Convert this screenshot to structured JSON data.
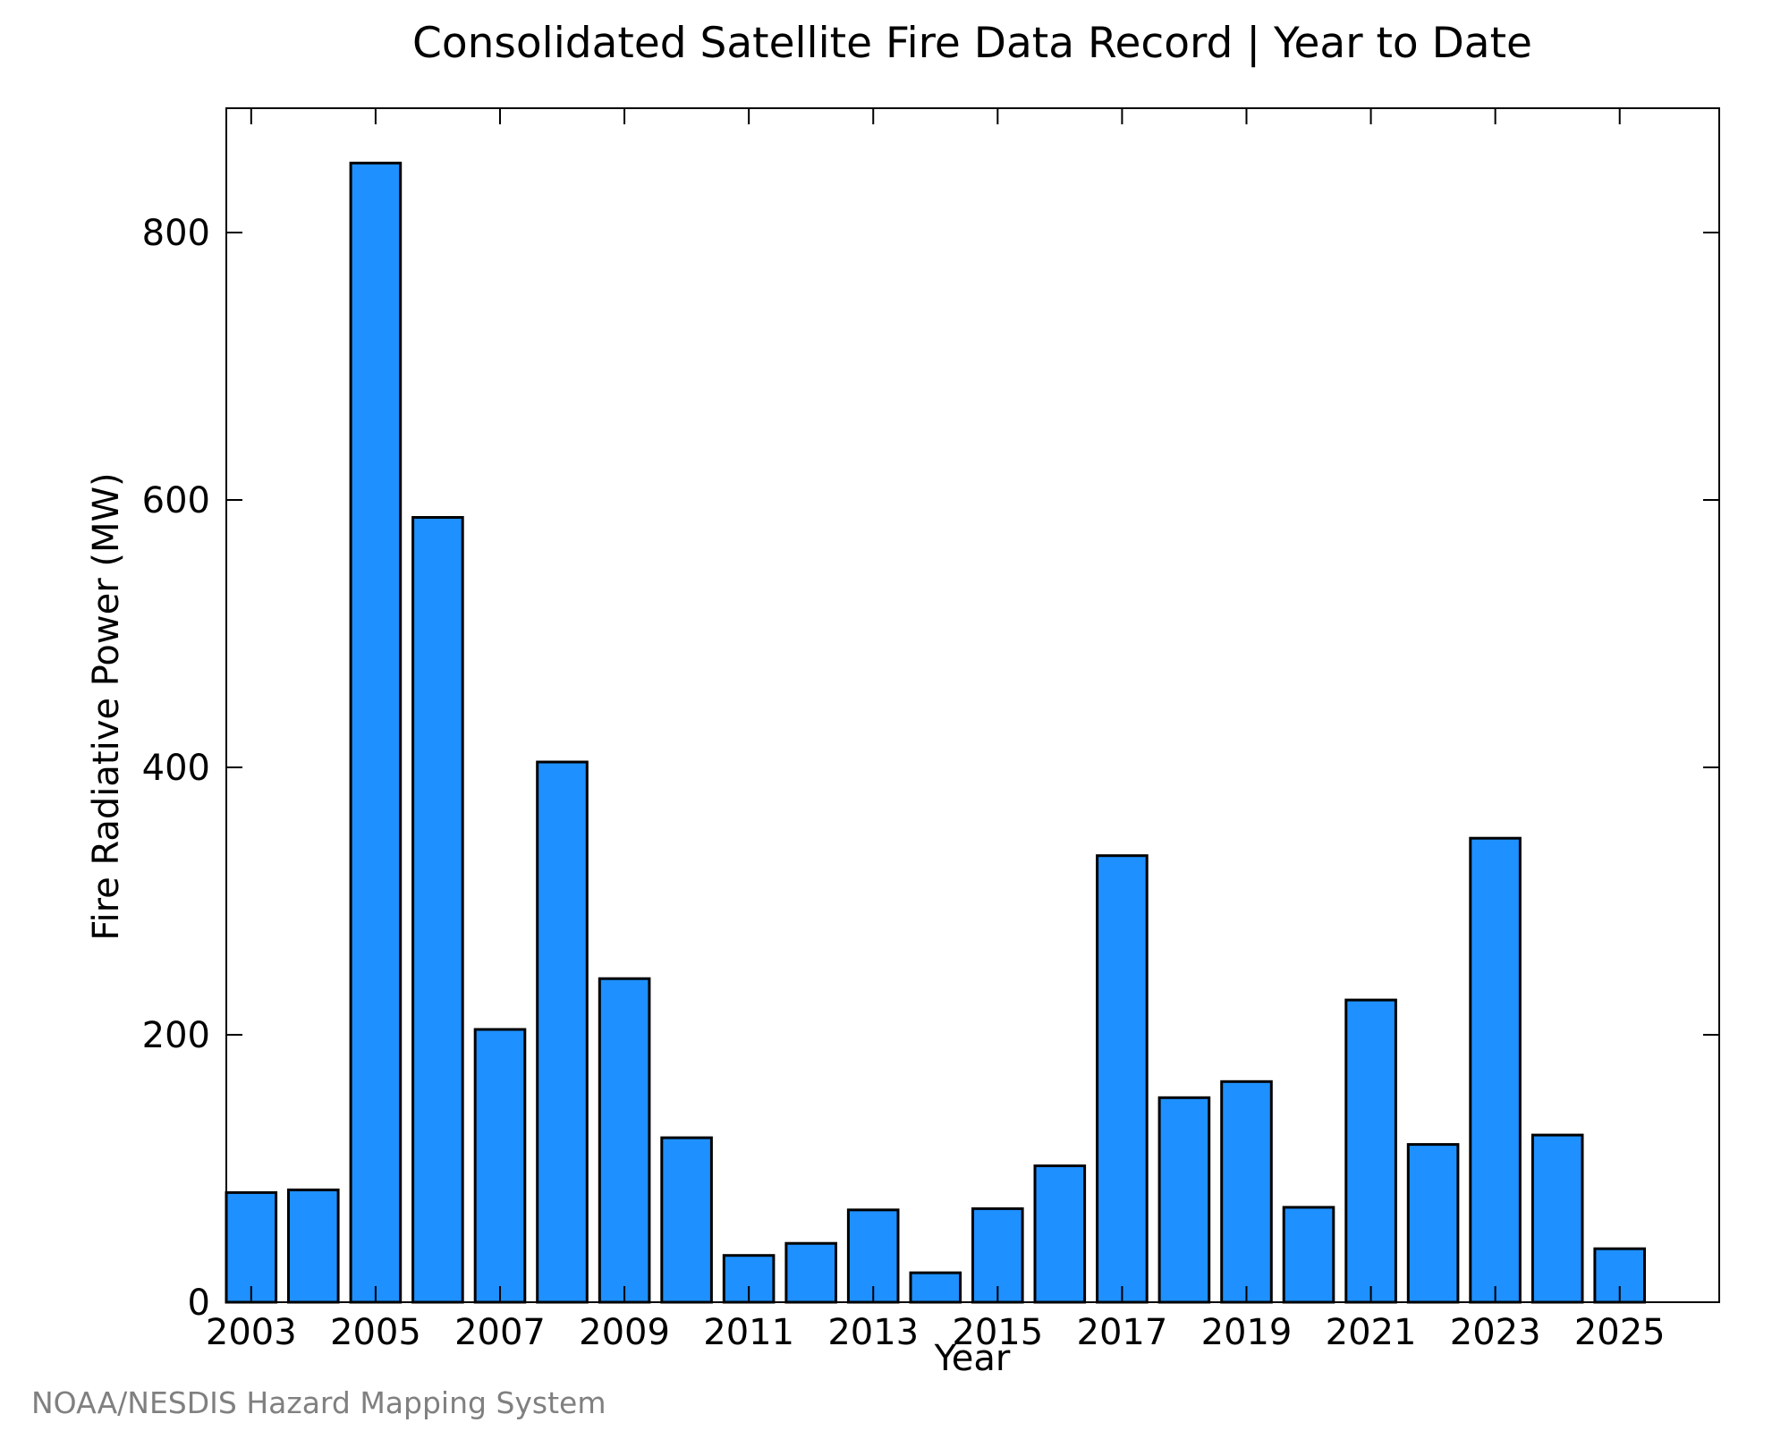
{
  "chart_data": {
    "type": "bar",
    "title": "Consolidated Satellite Fire Data Record | Year to Date",
    "xlabel": "Year",
    "ylabel": "Fire Radiative Power (MW)",
    "categories": [
      2003,
      2004,
      2005,
      2006,
      2007,
      2008,
      2009,
      2010,
      2011,
      2012,
      2013,
      2014,
      2015,
      2016,
      2017,
      2018,
      2019,
      2020,
      2021,
      2022,
      2023,
      2024,
      2025
    ],
    "values": [
      82,
      84,
      852,
      587,
      204,
      404,
      242,
      123,
      35,
      44,
      69,
      22,
      70,
      102,
      334,
      153,
      165,
      71,
      226,
      118,
      347,
      125,
      40
    ],
    "x_tick_labels": [
      "2003",
      "2005",
      "2007",
      "2009",
      "2011",
      "2013",
      "2015",
      "2017",
      "2019",
      "2021",
      "2023",
      "2025"
    ],
    "y_tick_labels": [
      "0",
      "200",
      "400",
      "600",
      "800"
    ],
    "y_ticks": [
      0,
      200,
      400,
      600,
      800
    ],
    "ylim": [
      0,
      893
    ],
    "xlim": [
      2002.6,
      2026.6
    ],
    "grid": false,
    "legend": "none",
    "bar_color": "#1e90ff",
    "bar_edge_color": "#000000"
  },
  "credit": {
    "text": "NOAA/NESDIS Hazard Mapping System",
    "color": "#808080"
  }
}
